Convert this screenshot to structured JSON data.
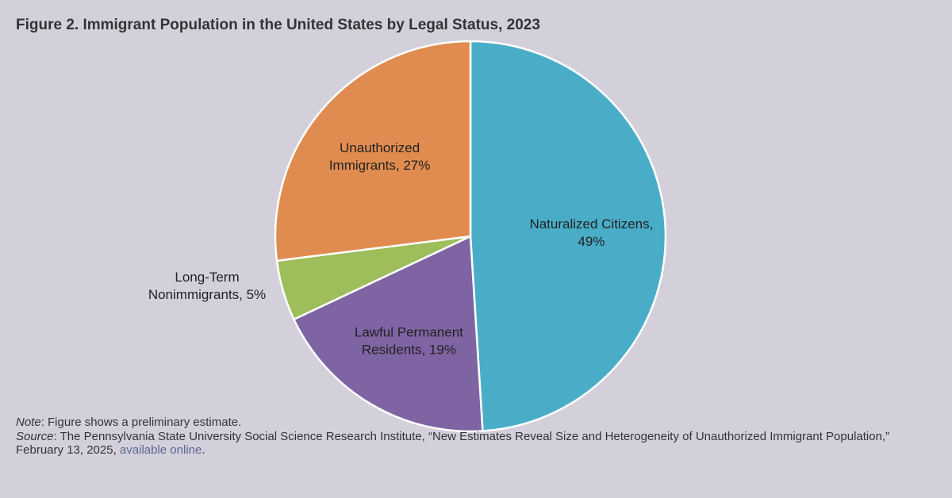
{
  "title": "Figure 2. Immigrant Population in the United States by Legal Status, 2023",
  "chart_data": {
    "type": "pie",
    "title": "Figure 2. Immigrant Population in the United States by Legal Status, 2023",
    "slices": [
      {
        "name": "Naturalized Citizens",
        "value": 49,
        "label_lines": [
          "Naturalized Citizens,",
          "49%"
        ],
        "color": "#4aadc8",
        "label_position": "inside"
      },
      {
        "name": "Lawful Permanent Residents",
        "value": 19,
        "label_lines": [
          "Lawful Permanent",
          "Residents, 19%"
        ],
        "color": "#7f64a3",
        "label_position": "inside"
      },
      {
        "name": "Long-Term Nonimmigrants",
        "value": 5,
        "label_lines": [
          "Long-Term",
          "Nonimmigrants, 5%"
        ],
        "color": "#9dbe5b",
        "label_position": "outside-left"
      },
      {
        "name": "Unauthorized Immigrants",
        "value": 27,
        "label_lines": [
          "Unauthorized",
          "Immigrants, 27%"
        ],
        "color": "#e08c50",
        "label_position": "inside"
      }
    ],
    "start_angle_deg": 0,
    "direction": "clockwise"
  },
  "footer": {
    "note_label": "Note",
    "note_text": ": Figure shows a preliminary estimate.",
    "source_label": "Source",
    "source_text": ": The Pennsylvania State University Social Science Research Institute, “New Estimates Reveal Size and Heterogeneity of Unauthorized Immigrant Population,” February 13, 2025, ",
    "link_text": "available online",
    "end_text": "."
  },
  "colors": {
    "background": "#d3d0dc",
    "slice_border": "#ffffff",
    "link": "#5b6691"
  }
}
